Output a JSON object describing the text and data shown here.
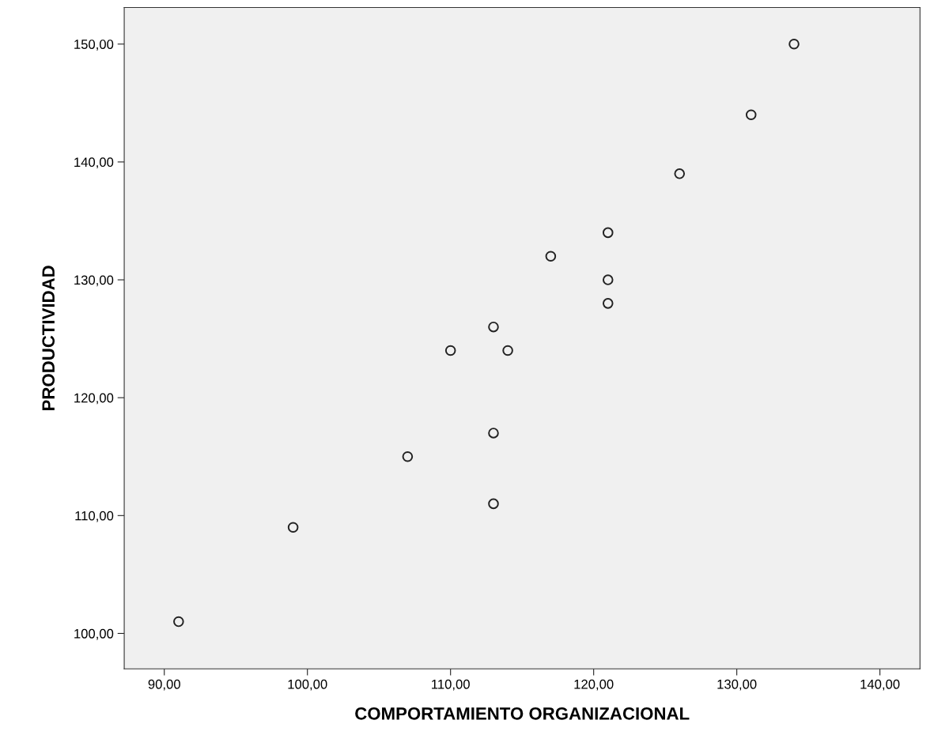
{
  "chart_data": {
    "type": "scatter",
    "xlabel": "COMPORTAMIENTO ORGANIZACIONAL",
    "ylabel": "PRODUCTIVIDAD",
    "x": [
      91,
      99,
      107,
      110,
      113,
      113,
      113,
      114,
      117,
      121,
      121,
      121,
      126,
      131,
      134
    ],
    "values": [
      101,
      109,
      115,
      124,
      126,
      117,
      111,
      124,
      132,
      134,
      130,
      128,
      139,
      144,
      150
    ],
    "color": "#222222",
    "marker": "circle",
    "grid": false,
    "xlim": [
      87.2,
      142.8
    ],
    "ylim": [
      97.0,
      153.1
    ],
    "xticks": [
      {
        "value": 90,
        "label": "90,00"
      },
      {
        "value": 100,
        "label": "100,00"
      },
      {
        "value": 110,
        "label": "110,00"
      },
      {
        "value": 120,
        "label": "120,00"
      },
      {
        "value": 130,
        "label": "130,00"
      },
      {
        "value": 140,
        "label": "140,00"
      }
    ],
    "yticks": [
      {
        "value": 100,
        "label": "100,00"
      },
      {
        "value": 110,
        "label": "110,00"
      },
      {
        "value": 120,
        "label": "120,00"
      },
      {
        "value": 130,
        "label": "130,00"
      },
      {
        "value": 140,
        "label": "140,00"
      },
      {
        "value": 150,
        "label": "150,00"
      }
    ]
  }
}
